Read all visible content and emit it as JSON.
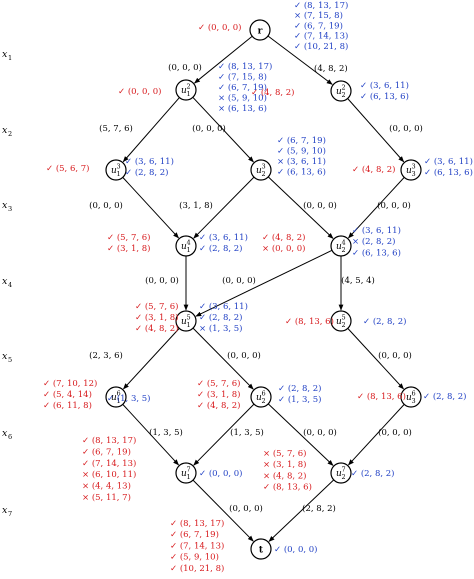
{
  "levels": [
    "x1",
    "x2",
    "x3",
    "x4",
    "x5",
    "x6",
    "x7"
  ],
  "nodes": {
    "r": {
      "label": "r"
    },
    "u1_2": {
      "label": "u",
      "sub": "1",
      "sup": "2"
    },
    "u2_2": {
      "label": "u",
      "sub": "2",
      "sup": "2"
    },
    "u1_3": {
      "label": "u",
      "sub": "1",
      "sup": "3"
    },
    "u2_3": {
      "label": "u",
      "sub": "2",
      "sup": "3"
    },
    "u3_3": {
      "label": "u",
      "sub": "3",
      "sup": "3"
    },
    "u1_4": {
      "label": "u",
      "sub": "1",
      "sup": "4"
    },
    "u2_4": {
      "label": "u",
      "sub": "2",
      "sup": "4"
    },
    "u1_5": {
      "label": "u",
      "sub": "1",
      "sup": "5"
    },
    "u2_5": {
      "label": "u",
      "sub": "2",
      "sup": "5"
    },
    "u1_6": {
      "label": "u",
      "sub": "1",
      "sup": "6"
    },
    "u2_6": {
      "label": "u",
      "sub": "2",
      "sup": "6"
    },
    "u3_6": {
      "label": "u",
      "sub": "3",
      "sup": "6"
    },
    "u1_7": {
      "label": "u",
      "sub": "1",
      "sup": "7"
    },
    "u2_7": {
      "label": "u",
      "sub": "2",
      "sup": "7"
    },
    "t": {
      "label": "t"
    }
  },
  "edges": [
    {
      "label": "(0, 0, 0)"
    },
    {
      "label": "(4, 8, 2)"
    },
    {
      "label": "(5, 7, 6)"
    },
    {
      "label": "(0, 0, 0)"
    },
    {
      "label": "(0, 0, 0)"
    },
    {
      "label": "(0, 0, 0)"
    },
    {
      "label": "(3, 1, 8)"
    },
    {
      "label": "(0, 0, 0)"
    },
    {
      "label": "(0, 0, 0)"
    },
    {
      "label": "(0, 0, 0)"
    },
    {
      "label": "(0, 0, 0)"
    },
    {
      "label": "(4, 5, 4)"
    },
    {
      "label": "(2, 3, 6)"
    },
    {
      "label": "(0, 0, 0)"
    },
    {
      "label": "(0, 0, 0)"
    },
    {
      "label": "(1, 3, 5)"
    },
    {
      "label": "(1, 3, 5)"
    },
    {
      "label": "(0, 0, 0)"
    },
    {
      "label": "(0, 0, 0)"
    },
    {
      "label": "(0, 0, 0)"
    },
    {
      "label": "(2, 8, 2)"
    }
  ],
  "annotations": [
    {
      "color": "red",
      "lines": [
        "✓ (0, 0, 0)"
      ]
    },
    {
      "color": "blue",
      "lines": [
        "✓ (8, 13, 17)",
        "× (7, 15, 8)",
        "✓ (6, 7, 19)",
        "✓ (7, 14, 13)",
        "✓ (10, 21, 8)"
      ]
    },
    {
      "color": "red",
      "lines": [
        "✓ (0, 0, 0)"
      ]
    },
    {
      "color": "blue",
      "lines": [
        "✓ (8, 13, 17)",
        "✓ (7, 15, 8)",
        "✓ (6, 7, 19)",
        "× (5, 9, 10)",
        "× (6, 13, 6)"
      ]
    },
    {
      "color": "red",
      "lines": [
        "✓ (4, 8, 2)"
      ]
    },
    {
      "color": "blue",
      "lines": [
        "✓ (3, 6, 11)",
        "✓ (6, 13, 6)"
      ]
    },
    {
      "color": "red",
      "lines": [
        "✓ (5, 6, 7)"
      ]
    },
    {
      "color": "blue",
      "lines": [
        "✓ (3, 6, 11)",
        "✓ (2, 8, 2)"
      ]
    },
    {
      "color": "blue",
      "lines": [
        "✓ (6, 7, 19)",
        "✓ (5, 9, 10)",
        "× (3, 6, 11)",
        "✓ (6, 13, 6)"
      ]
    },
    {
      "color": "red",
      "lines": [
        "✓ (4, 8, 2)"
      ]
    },
    {
      "color": "blue",
      "lines": [
        "✓ (3, 6, 11)",
        "✓ (6, 13, 6)"
      ]
    },
    {
      "color": "red",
      "lines": [
        "✓ (5, 7, 6)",
        "✓ (3, 1, 8)"
      ]
    },
    {
      "color": "blue",
      "lines": [
        "✓ (3, 6, 11)",
        "✓ (2, 8, 2)"
      ]
    },
    {
      "color": "red",
      "lines": [
        "✓ (4, 8, 2)",
        "× (0, 0, 0)"
      ]
    },
    {
      "color": "blue",
      "lines": [
        "✓ (3, 6, 11)",
        "× (2, 8, 2)",
        "✓ (6, 13, 6)"
      ]
    },
    {
      "color": "red",
      "lines": [
        "✓ (5, 7, 6)",
        "✓ (3, 1, 8)",
        "✓ (4, 8, 2)"
      ]
    },
    {
      "color": "blue",
      "lines": [
        "✓ (3, 6, 11)",
        "✓ (2, 8, 2)",
        "× (1, 3, 5)"
      ]
    },
    {
      "color": "red",
      "lines": [
        "✓ (8, 13, 6)"
      ]
    },
    {
      "color": "blue",
      "lines": [
        "✓ (2, 8, 2)"
      ]
    },
    {
      "color": "red",
      "lines": [
        "✓ (7, 10, 12)",
        "✓ (5, 4, 14)",
        "✓ (6, 11, 8)"
      ]
    },
    {
      "color": "blue",
      "lines": [
        "✓ (1, 3, 5)"
      ]
    },
    {
      "color": "red",
      "lines": [
        "✓ (5, 7, 6)",
        "✓ (3, 1, 8)",
        "✓ (4, 8, 2)"
      ]
    },
    {
      "color": "blue",
      "lines": [
        "✓ (2, 8, 2)",
        "✓ (1, 3, 5)"
      ]
    },
    {
      "color": "red",
      "lines": [
        "✓ (8, 13, 6)"
      ]
    },
    {
      "color": "blue",
      "lines": [
        "✓ (2, 8, 2)"
      ]
    },
    {
      "color": "red",
      "lines": [
        "✓ (8, 13, 17)",
        "✓ (6, 7, 19)",
        "✓ (7, 14, 13)",
        "× (6, 10, 11)",
        "× (4, 4, 13)",
        "× (5, 11, 7)"
      ]
    },
    {
      "color": "blue",
      "lines": [
        "✓ (0, 0, 0)"
      ]
    },
    {
      "color": "red",
      "lines": [
        "× (5, 7, 6)",
        "× (3, 1, 8)",
        "× (4, 8, 2)",
        "✓ (8, 13, 6)"
      ]
    },
    {
      "color": "blue",
      "lines": [
        "✓ (2, 8, 2)"
      ]
    },
    {
      "color": "red",
      "lines": [
        "✓ (8, 13, 17)",
        "✓ (6, 7, 19)",
        "✓ (7, 14, 13)",
        "✓ (5, 9, 10)",
        "✓ (10, 21, 8)"
      ]
    },
    {
      "color": "blue",
      "lines": [
        "✓ (0, 0, 0)"
      ]
    }
  ]
}
